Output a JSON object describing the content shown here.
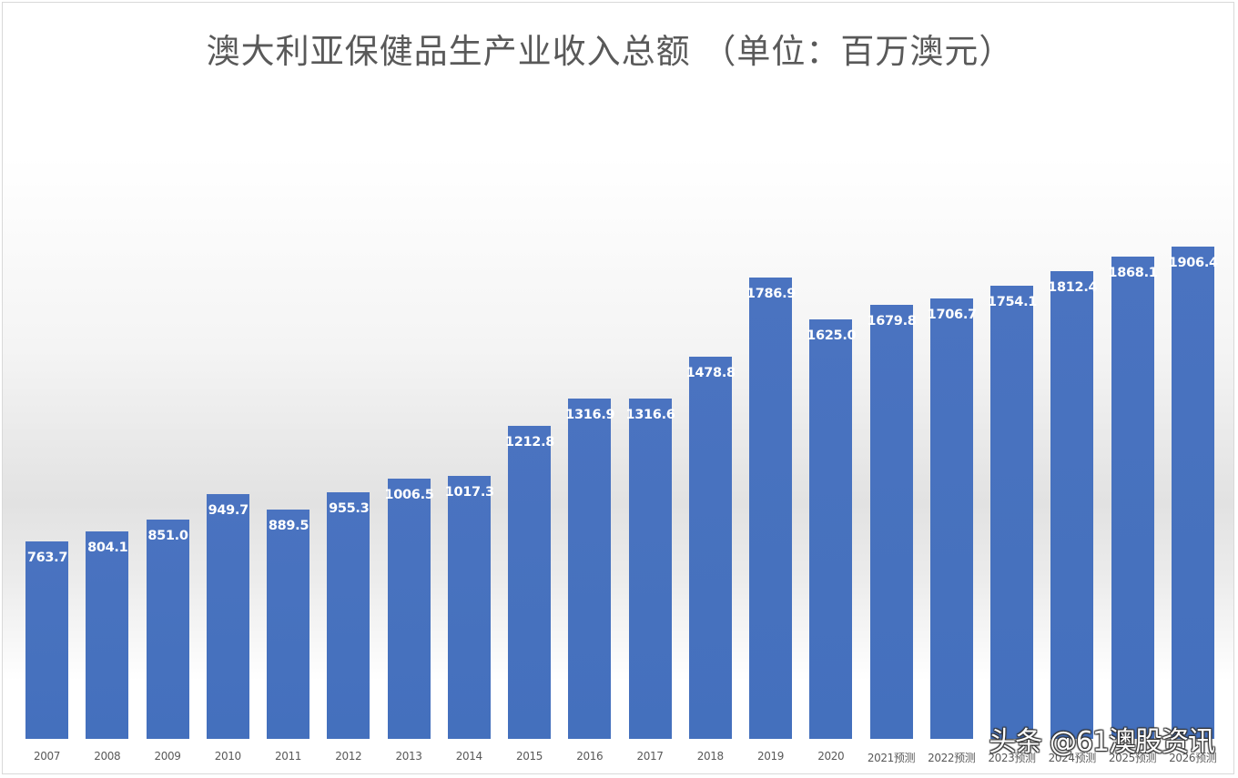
{
  "chart_data": {
    "type": "bar",
    "title": "澳大利亚保健品生产业收入总额 （单位：百万澳元）",
    "xlabel": "",
    "ylabel": "",
    "ylim": [
      0,
      2000
    ],
    "grid": false,
    "legend": null,
    "bar_color": "#4472C4",
    "categories": [
      "2007",
      "2008",
      "2009",
      "2010",
      "2011",
      "2012",
      "2013",
      "2014",
      "2015",
      "2016",
      "2017",
      "2018",
      "2019",
      "2020",
      "2021预测",
      "2022预测",
      "2023预测",
      "2024预测",
      "2025预测",
      "2026预测"
    ],
    "values": [
      763.7,
      804.1,
      851.0,
      949.7,
      889.5,
      955.3,
      1006.5,
      1017.3,
      1212.8,
      1316.9,
      1316.6,
      1478.8,
      1786.9,
      1625.0,
      1679.8,
      1706.7,
      1754.1,
      1812.4,
      1868.1,
      1906.4
    ],
    "value_labels": [
      "763.7",
      "804.1",
      "851.0",
      "949.7",
      "889.5",
      "955.3",
      "1006.5",
      "1017.3",
      "1212.8",
      "1316.9",
      "1316.6",
      "1478.8",
      "1786.9",
      "1625.0",
      "1679.8",
      "1706.7",
      "1754.1",
      "1812.4",
      "1868.1",
      "1906.4"
    ]
  },
  "watermark": "头条 @61澳股资讯"
}
